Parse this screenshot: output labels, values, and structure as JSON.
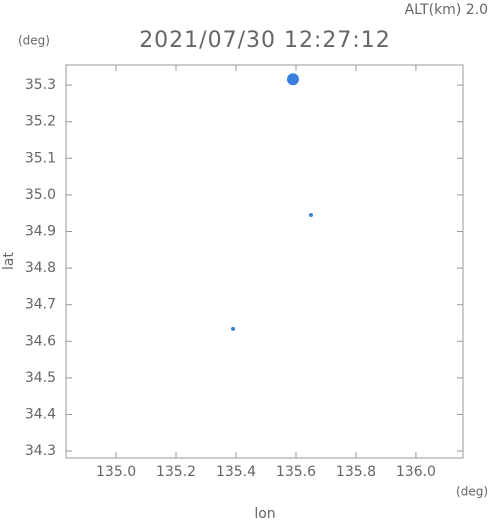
{
  "chart_data": {
    "type": "scatter",
    "title": "2021/07/30 12:27:12",
    "annotation": "ALT(km) 2.0",
    "y_unit": "(deg)",
    "x_unit": "(deg)",
    "xlabel": "lon",
    "ylabel": "lat",
    "series": [
      {
        "color": "#3a7fe0",
        "x": [
          135.59,
          135.65,
          135.39
        ],
        "values": [
          35.316,
          34.945,
          34.634
        ],
        "sizes": [
          6,
          2,
          2
        ]
      }
    ],
    "xlim": [
      134.833,
      136.157
    ],
    "ylim": [
      34.281,
      35.355
    ],
    "xticks": [
      {
        "value": 135,
        "label": "135.0"
      },
      135.2,
      135.4,
      135.6,
      135.8,
      {
        "value": 136,
        "label": "136.0"
      }
    ],
    "yticks": [
      35.3,
      35.2,
      35.1,
      {
        "value": 35,
        "label": "35.0"
      },
      34.9,
      34.8,
      34.7,
      34.6,
      34.5,
      34.4,
      34.3
    ]
  }
}
